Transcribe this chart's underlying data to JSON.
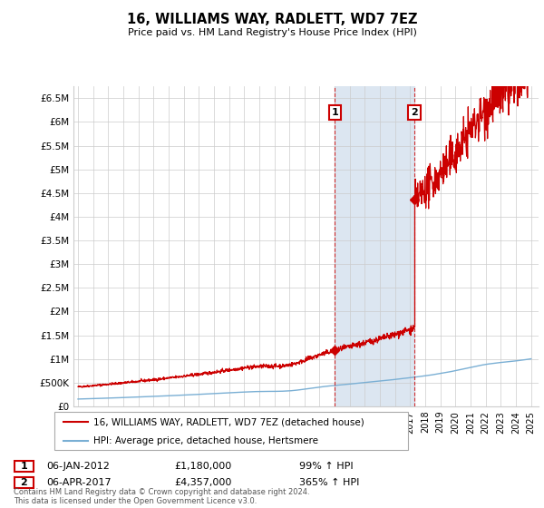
{
  "title": "16, WILLIAMS WAY, RADLETT, WD7 7EZ",
  "subtitle": "Price paid vs. HM Land Registry's House Price Index (HPI)",
  "ylabel_ticks": [
    "£0",
    "£500K",
    "£1M",
    "£1.5M",
    "£2M",
    "£2.5M",
    "£3M",
    "£3.5M",
    "£4M",
    "£4.5M",
    "£5M",
    "£5.5M",
    "£6M",
    "£6.5M"
  ],
  "ylim": [
    0,
    6750000
  ],
  "xlim_start": 1994.7,
  "xlim_end": 2025.5,
  "xticks": [
    1995,
    1996,
    1997,
    1998,
    1999,
    2000,
    2001,
    2002,
    2003,
    2004,
    2005,
    2006,
    2007,
    2008,
    2009,
    2010,
    2011,
    2012,
    2013,
    2014,
    2015,
    2016,
    2017,
    2018,
    2019,
    2020,
    2021,
    2022,
    2023,
    2024,
    2025
  ],
  "transaction1_x": 2012.02,
  "transaction1_y": 1180000,
  "transaction2_x": 2017.27,
  "transaction2_y": 4357000,
  "transaction2_y_before": 1800000,
  "sale_color": "#cc0000",
  "hpi_color": "#7aafd4",
  "highlight_color": "#dce6f1",
  "legend_line1": "16, WILLIAMS WAY, RADLETT, WD7 7EZ (detached house)",
  "legend_line2": "HPI: Average price, detached house, Hertsmere",
  "table_row1": [
    "1",
    "06-JAN-2012",
    "£1,180,000",
    "99% ↑ HPI"
  ],
  "table_row2": [
    "2",
    "06-APR-2017",
    "£4,357,000",
    "365% ↑ HPI"
  ],
  "footnote": "Contains HM Land Registry data © Crown copyright and database right 2024.\nThis data is licensed under the Open Government Licence v3.0.",
  "background_color": "#ffffff",
  "grid_color": "#cccccc"
}
